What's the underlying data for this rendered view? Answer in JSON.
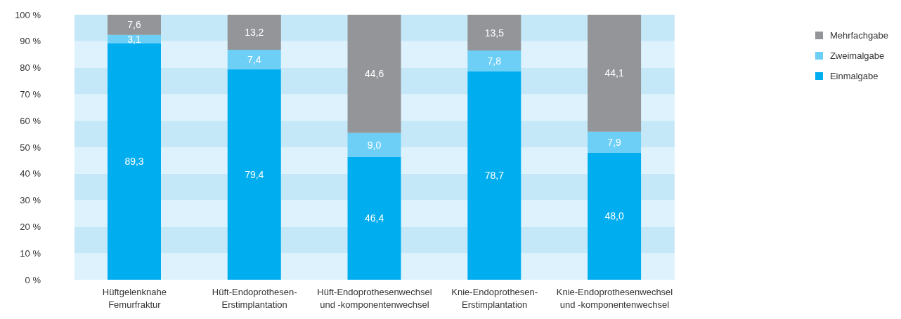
{
  "chart_data": {
    "type": "bar",
    "stacked": true,
    "categories": [
      "Hüftgelenknahe\nFemurfraktur",
      "Hüft-Endoprothesen-\nErstimplantation",
      "Hüft-Endoprothesenwechsel\nund -komponentenwechsel",
      "Knie-Endoprothesen-\nErstimplantation",
      "Knie-Endoprothesenwechsel\nund -komponentenwechsel"
    ],
    "series": [
      {
        "name": "Einmalgabe",
        "color": "#00aeef",
        "values": [
          89.3,
          79.4,
          46.4,
          78.7,
          48.0
        ]
      },
      {
        "name": "Zweimalgabe",
        "color": "#6dcff6",
        "values": [
          3.1,
          7.4,
          9.0,
          7.8,
          7.9
        ]
      },
      {
        "name": "Mehrfachgabe",
        "color": "#939598",
        "values": [
          7.6,
          13.2,
          44.6,
          13.5,
          44.1
        ]
      }
    ],
    "value_labels": [
      [
        "89,3",
        "79,4",
        "46,4",
        "78,7",
        "48,0"
      ],
      [
        "3,1",
        "7,4",
        "9,0",
        "7,8",
        "7,9"
      ],
      [
        "7,6",
        "13,2",
        "44,6",
        "13,5",
        "44,1"
      ]
    ],
    "ylim": [
      0,
      100
    ],
    "yticks": [
      {
        "value": 0,
        "label": "0 %"
      },
      {
        "value": 10,
        "label": "10 %"
      },
      {
        "value": 20,
        "label": "20 %"
      },
      {
        "value": 30,
        "label": "30 %"
      },
      {
        "value": 40,
        "label": "40 %"
      },
      {
        "value": 50,
        "label": "50 %"
      },
      {
        "value": 60,
        "label": "60 %"
      },
      {
        "value": 70,
        "label": "70 %"
      },
      {
        "value": 80,
        "label": "80 %"
      },
      {
        "value": 90,
        "label": "90 %"
      },
      {
        "value": 100,
        "label": "100 %"
      }
    ],
    "bands": [
      {
        "axis": "y",
        "from": 0,
        "to": 10,
        "color": "#ddf2fc"
      },
      {
        "axis": "y",
        "from": 10,
        "to": 20,
        "color": "#c4e8f8"
      },
      {
        "axis": "y",
        "from": 20,
        "to": 30,
        "color": "#ddf2fc"
      },
      {
        "axis": "y",
        "from": 30,
        "to": 40,
        "color": "#c4e8f8"
      },
      {
        "axis": "y",
        "from": 40,
        "to": 50,
        "color": "#ddf2fc"
      },
      {
        "axis": "y",
        "from": 50,
        "to": 60,
        "color": "#c4e8f8"
      },
      {
        "axis": "y",
        "from": 60,
        "to": 70,
        "color": "#ddf2fc"
      },
      {
        "axis": "y",
        "from": 70,
        "to": 80,
        "color": "#c4e8f8"
      },
      {
        "axis": "y",
        "from": 80,
        "to": 90,
        "color": "#ddf2fc"
      },
      {
        "axis": "y",
        "from": 90,
        "to": 100,
        "color": "#c4e8f8"
      }
    ],
    "legend": "top right"
  }
}
